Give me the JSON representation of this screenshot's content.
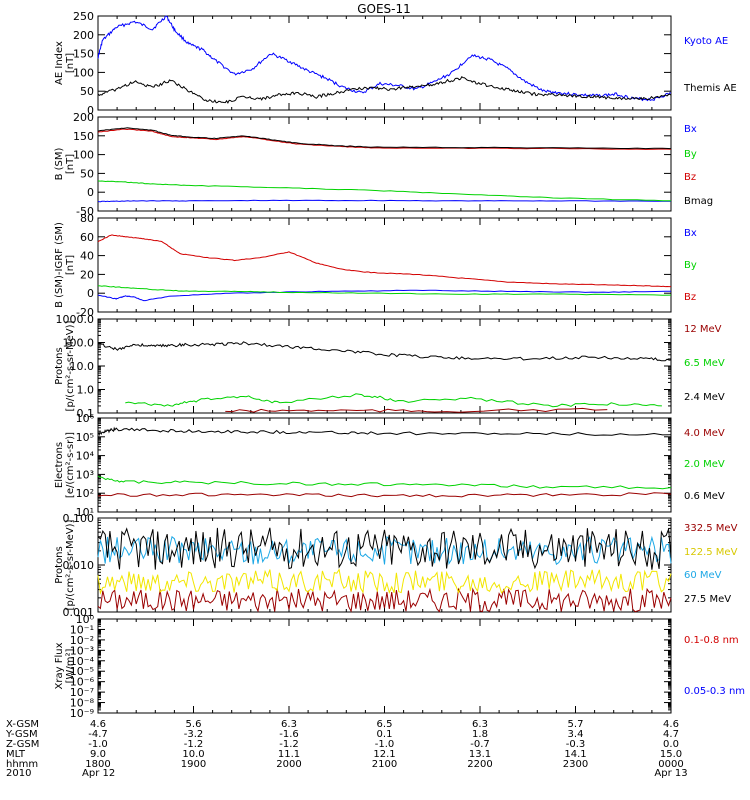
{
  "title": "GOES-11",
  "colors": {
    "blue": "#0000ff",
    "green": "#00d200",
    "red": "#d20000",
    "darkred": "#9a0000",
    "black": "#000000",
    "cyan": "#1ea8e6",
    "yellow": "#f2e600"
  },
  "chart_data": [
    {
      "type": "line",
      "panel": "ae",
      "ylabel": "AE Index\n[nT]",
      "ylim": [
        0,
        250
      ],
      "yticks": [
        "0",
        "50",
        "100",
        "150",
        "200",
        "250"
      ],
      "series": [
        {
          "name": "Kyoto AE",
          "color": "blue",
          "x": [
            0,
            0.05,
            0.2,
            0.4,
            0.6,
            0.75,
            0.85,
            1.0,
            1.15,
            1.3,
            1.5,
            1.7,
            1.9,
            2.1,
            2.3,
            2.5,
            2.7,
            2.9,
            3.1,
            3.3,
            3.5,
            3.7,
            3.9,
            4.1,
            4.3,
            4.5,
            4.7,
            4.9,
            5.1,
            5.3,
            5.5,
            5.7,
            5.9,
            6.1,
            6.3
          ],
          "y": [
            140,
            185,
            220,
            235,
            215,
            250,
            210,
            175,
            160,
            130,
            95,
            110,
            150,
            130,
            105,
            85,
            60,
            45,
            70,
            65,
            55,
            75,
            100,
            145,
            135,
            110,
            75,
            50,
            45,
            40,
            38,
            42,
            30,
            28,
            45
          ]
        },
        {
          "name": "Themis AE",
          "color": "black",
          "x": [
            0,
            0.2,
            0.4,
            0.6,
            0.8,
            1.0,
            1.2,
            1.4,
            1.6,
            1.8,
            2.0,
            2.2,
            2.4,
            2.6,
            2.8,
            3.0,
            3.2,
            3.4,
            3.6,
            3.8,
            4.0,
            4.2,
            4.4,
            4.6,
            4.8,
            5.0,
            5.2,
            5.4,
            5.6,
            5.8,
            6.0,
            6.3
          ],
          "y": [
            40,
            55,
            75,
            60,
            80,
            50,
            25,
            20,
            35,
            30,
            40,
            45,
            35,
            45,
            55,
            60,
            55,
            60,
            65,
            75,
            85,
            70,
            60,
            50,
            42,
            40,
            38,
            36,
            32,
            30,
            30,
            40
          ]
        }
      ]
    },
    {
      "type": "line",
      "panel": "b",
      "ylabel": "B (SM)\n[nT]",
      "ylim": [
        -50,
        200
      ],
      "yticks": [
        "-50",
        "0",
        "50",
        "100",
        "150",
        "200"
      ],
      "series": [
        {
          "name": "Bx",
          "color": "blue",
          "x": [
            0,
            0.2,
            0.5,
            1,
            2,
            3,
            4,
            5,
            6.3
          ],
          "y": [
            -25,
            -24,
            -23,
            -23,
            -22,
            -22,
            -23,
            -23,
            -24
          ]
        },
        {
          "name": "By",
          "color": "green",
          "x": [
            0,
            0.3,
            0.6,
            1,
            2,
            3,
            4,
            5,
            6.3
          ],
          "y": [
            30,
            27,
            22,
            18,
            12,
            5,
            -5,
            -15,
            -23
          ]
        },
        {
          "name": "Bz",
          "color": "red",
          "x": [
            0,
            0.3,
            0.6,
            0.8,
            1,
            1.3,
            1.6,
            1.9,
            2.2,
            2.6,
            3,
            4,
            5,
            6.3
          ],
          "y": [
            160,
            168,
            162,
            148,
            145,
            140,
            148,
            138,
            128,
            122,
            118,
            117,
            116,
            114
          ]
        },
        {
          "name": "Bmag",
          "color": "black",
          "x": [
            0,
            0.3,
            0.6,
            0.8,
            1,
            1.3,
            1.6,
            1.9,
            2.2,
            2.6,
            3,
            4,
            5,
            6.3
          ],
          "y": [
            163,
            171,
            165,
            151,
            147,
            143,
            150,
            140,
            130,
            124,
            120,
            119,
            118,
            116
          ]
        }
      ]
    },
    {
      "type": "line",
      "panel": "db",
      "ylabel": "B (SM)-IGRF (SM)\n[nT]",
      "ylim": [
        -20,
        80
      ],
      "yticks": [
        "-20",
        "0",
        "20",
        "40",
        "60",
        "80"
      ],
      "series": [
        {
          "name": "Bx",
          "color": "blue",
          "x": [
            0,
            0.2,
            0.3,
            0.4,
            0.5,
            0.8,
            1.5,
            2.5,
            3.5,
            4.5,
            5.5,
            6.3
          ],
          "y": [
            -2,
            -6,
            -3,
            -4,
            -8,
            -3,
            0,
            2,
            3,
            2,
            1,
            2
          ]
        },
        {
          "name": "By",
          "color": "green",
          "x": [
            0,
            0.3,
            0.6,
            1,
            1.5,
            2,
            3,
            4,
            5,
            6.3
          ],
          "y": [
            8,
            6,
            4,
            2,
            2,
            1,
            0,
            -1,
            -1,
            -2
          ]
        },
        {
          "name": "Bz",
          "color": "red",
          "x": [
            0,
            0.15,
            0.3,
            0.5,
            0.7,
            0.9,
            1.2,
            1.5,
            1.8,
            2.1,
            2.4,
            2.7,
            3,
            3.5,
            4,
            4.5,
            5,
            5.5,
            6,
            6.3
          ],
          "y": [
            55,
            62,
            60,
            58,
            55,
            42,
            38,
            35,
            38,
            44,
            32,
            25,
            22,
            20,
            16,
            12,
            10,
            9,
            8,
            7
          ]
        }
      ]
    },
    {
      "type": "line",
      "panel": "protons1",
      "yscale": "log",
      "ylabel": "Protons\n[p/(cm²-s-sr-MeV)]",
      "ylim": [
        0.1,
        1000
      ],
      "yticks": [
        "0.1",
        "1.0",
        "10.0",
        "100.0",
        "1000.0"
      ],
      "series": [
        {
          "name": "12 MeV",
          "color": "darkred",
          "x": [
            1.4,
            2.5,
            3.7,
            5.6
          ],
          "y": [
            0.12,
            0.13,
            0.12,
            0.14
          ]
        },
        {
          "name": "6.5 MeV",
          "color": "green",
          "x": [
            0.3,
            0.8,
            1.1,
            1.6,
            2.0,
            2.9,
            3.3,
            4.1,
            4.9,
            5.6,
            6.2
          ],
          "y": [
            0.3,
            0.2,
            0.35,
            0.5,
            0.25,
            0.6,
            0.3,
            0.4,
            0.2,
            0.25,
            0.2
          ]
        },
        {
          "name": "2.4 MeV",
          "color": "black",
          "x": [
            0,
            0.2,
            0.4,
            0.6,
            0.8,
            1,
            1.3,
            1.6,
            2,
            2.4,
            2.8,
            3.2,
            3.6,
            4,
            4.5,
            5,
            5.5,
            6,
            6.3
          ],
          "y": [
            90,
            50,
            80,
            70,
            75,
            80,
            85,
            95,
            70,
            55,
            40,
            30,
            25,
            22,
            20,
            22,
            24,
            20,
            18
          ]
        }
      ]
    },
    {
      "type": "line",
      "panel": "electrons",
      "yscale": "log",
      "ylabel": "Electrons\n[e/(cm²-s-sr)]",
      "ylim": [
        10,
        1000000
      ],
      "yticks": [
        "10¹",
        "10²",
        "10³",
        "10⁴",
        "10⁵",
        "10⁶"
      ],
      "series": [
        {
          "name": "4.0 MeV",
          "color": "darkred",
          "x": [
            0,
            1,
            2,
            3,
            4,
            5,
            6.3
          ],
          "y": [
            80,
            85,
            80,
            75,
            75,
            80,
            90
          ]
        },
        {
          "name": "2.0 MeV",
          "color": "green",
          "x": [
            0,
            0.3,
            1,
            2,
            3,
            4,
            5,
            6.3
          ],
          "y": [
            700,
            400,
            380,
            330,
            300,
            260,
            220,
            200
          ]
        },
        {
          "name": "0.6 MeV",
          "color": "black",
          "x": [
            0,
            0.1,
            0.2,
            0.6,
            1,
            1.5,
            2,
            2.5,
            3,
            4,
            5,
            6.3
          ],
          "y": [
            140000,
            200000,
            250000,
            220000,
            200000,
            190000,
            180000,
            170000,
            160000,
            150000,
            140000,
            130000
          ]
        }
      ]
    },
    {
      "type": "line",
      "panel": "protons2",
      "yscale": "log",
      "ylabel": "Protons\n[p/(cm²-s-sr-MeV)]",
      "ylim": [
        0.001,
        0.1
      ],
      "yticks": [
        "0.001",
        "0.010",
        "0.100"
      ],
      "series": [
        {
          "name": "332.5 MeV",
          "color": "darkred",
          "center": 0.0018,
          "spread": 0.25
        },
        {
          "name": "122.5 MeV",
          "color": "yellow",
          "center": 0.0045,
          "spread": 0.25
        },
        {
          "name": "60 MeV",
          "color": "cyan",
          "center": 0.02,
          "spread": 0.3
        },
        {
          "name": "27.5 MeV",
          "color": "black",
          "center": 0.022,
          "spread": 0.45
        }
      ]
    },
    {
      "type": "line",
      "panel": "xray",
      "yscale": "log",
      "ylabel": "Xray Flux\n[W/m²]",
      "ylim": [
        1e-09,
        1
      ],
      "yticks": [
        "10⁻⁹",
        "10⁻⁸",
        "10⁻⁷",
        "10⁻⁶",
        "10⁻⁵",
        "10⁻⁴",
        "10⁻³",
        "10⁻²",
        "10⁻¹",
        "10⁰"
      ],
      "series": [
        {
          "name": "0.1-0.8 nm",
          "color": "red"
        },
        {
          "name": "0.05-0.3 nm",
          "color": "blue"
        }
      ]
    }
  ],
  "xaxis": {
    "row_labels": [
      "X-GSM",
      "Y-GSM",
      "Z-GSM",
      "MLT",
      "hhmm",
      "2010"
    ],
    "columns": [
      [
        "4.6",
        "-4.7",
        "-1.0",
        "9.0",
        "1800",
        "Apr 12"
      ],
      [
        "5.6",
        "-3.2",
        "-1.2",
        "10.0",
        "1900",
        ""
      ],
      [
        "6.3",
        "-1.6",
        "-1.2",
        "11.1",
        "2000",
        ""
      ],
      [
        "6.5",
        "0.1",
        "-1.0",
        "12.1",
        "2100",
        ""
      ],
      [
        "6.3",
        "1.8",
        "-0.7",
        "13.1",
        "2200",
        ""
      ],
      [
        "5.7",
        "3.4",
        "-0.3",
        "14.1",
        "2300",
        ""
      ],
      [
        "4.6",
        "4.7",
        "0.0",
        "15.0",
        "0000",
        "Apr 13"
      ]
    ]
  }
}
